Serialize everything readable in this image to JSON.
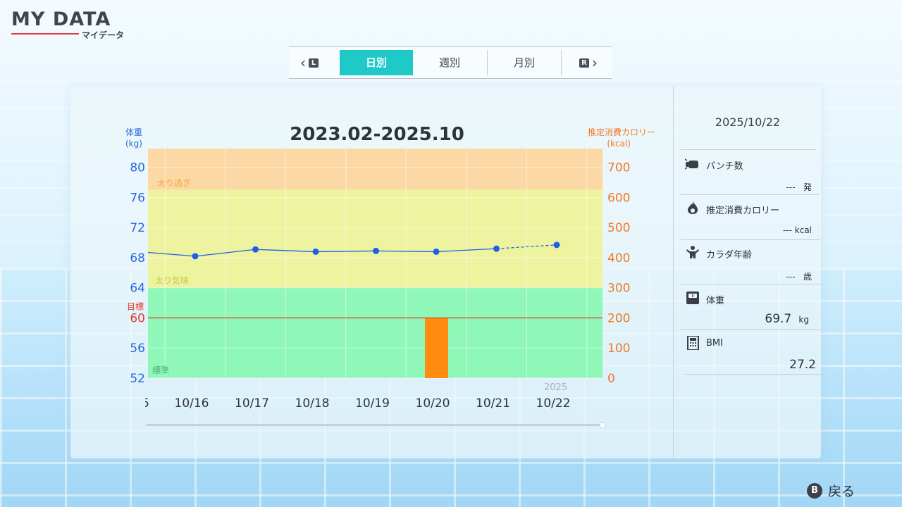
{
  "header": {
    "title": "MY DATA",
    "subtitle": "マイデータ"
  },
  "tabs": {
    "left_key": "L",
    "right_key": "R",
    "items": [
      {
        "label": "日別",
        "active": true
      },
      {
        "label": "週別",
        "active": false
      },
      {
        "label": "月別",
        "active": false
      }
    ]
  },
  "chart": {
    "title": "2023.02-2025.10",
    "left_axis_title": "体重",
    "left_axis_unit": "(kg)",
    "right_axis_title": "推定消費カロリー",
    "right_axis_unit": "(kcal)",
    "goal_label": "目標",
    "zones": {
      "over": "太り過ぎ",
      "slightly_over": "太り気味",
      "normal": "標準"
    },
    "year_label": "2025",
    "partial_left_label": "5"
  },
  "chart_data": {
    "type": "line",
    "categories": [
      "10/16",
      "10/17",
      "10/18",
      "10/19",
      "10/20",
      "10/21",
      "10/22"
    ],
    "left_ticks": [
      80,
      76,
      72,
      68,
      64,
      60,
      56,
      52
    ],
    "right_ticks": [
      700,
      600,
      500,
      400,
      300,
      200,
      100,
      0
    ],
    "ylim_left": [
      52,
      82.5
    ],
    "ylim_right": [
      0,
      762
    ],
    "weight_series": {
      "values": [
        68.2,
        69.1,
        68.8,
        68.9,
        68.8,
        69.2,
        69.7
      ],
      "color": "#1f5fe8"
    },
    "weight_prev_offscreen": 68.7,
    "calorie_series": {
      "values": [
        0,
        0,
        0,
        0,
        200,
        0,
        0
      ],
      "color": "#ff8c10"
    },
    "goal_weight": 60,
    "zones": {
      "over_from": 77,
      "slightly_over_from": 64
    },
    "colors": {
      "over": "#fcd9a4",
      "slightly_over": "#eef3a0",
      "normal": "#8ff7b8",
      "goal": "#e23a2e"
    }
  },
  "side": {
    "date": "2025/10/22",
    "items": [
      {
        "label": "パンチ数",
        "value": "---",
        "unit": "発",
        "icon": "punch-icon"
      },
      {
        "label": "推定消費カロリー",
        "value": "---",
        "unit": "kcal",
        "icon": "flame-icon"
      },
      {
        "label": "カラダ年齢",
        "value": "---",
        "unit": "歳",
        "icon": "body-age-icon"
      },
      {
        "label": "体重",
        "value": "69.7",
        "unit": "kg",
        "icon": "scale-icon"
      },
      {
        "label": "BMI",
        "value": "27.2",
        "unit": "",
        "icon": "calculator-icon"
      }
    ]
  },
  "footer": {
    "back_key": "B",
    "back_label": "戻る"
  }
}
